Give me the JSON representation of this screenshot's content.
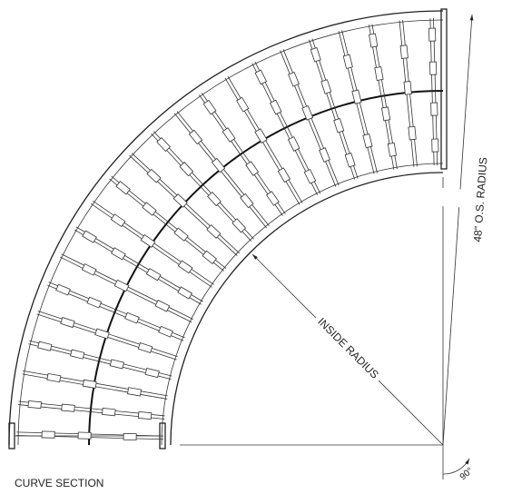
{
  "labels": {
    "outside_radius": "48\" O.S. RADIUS",
    "inside_radius": "INSIDE RADIUS",
    "angle": "90°",
    "caption": "CURVE SECTION"
  }
}
